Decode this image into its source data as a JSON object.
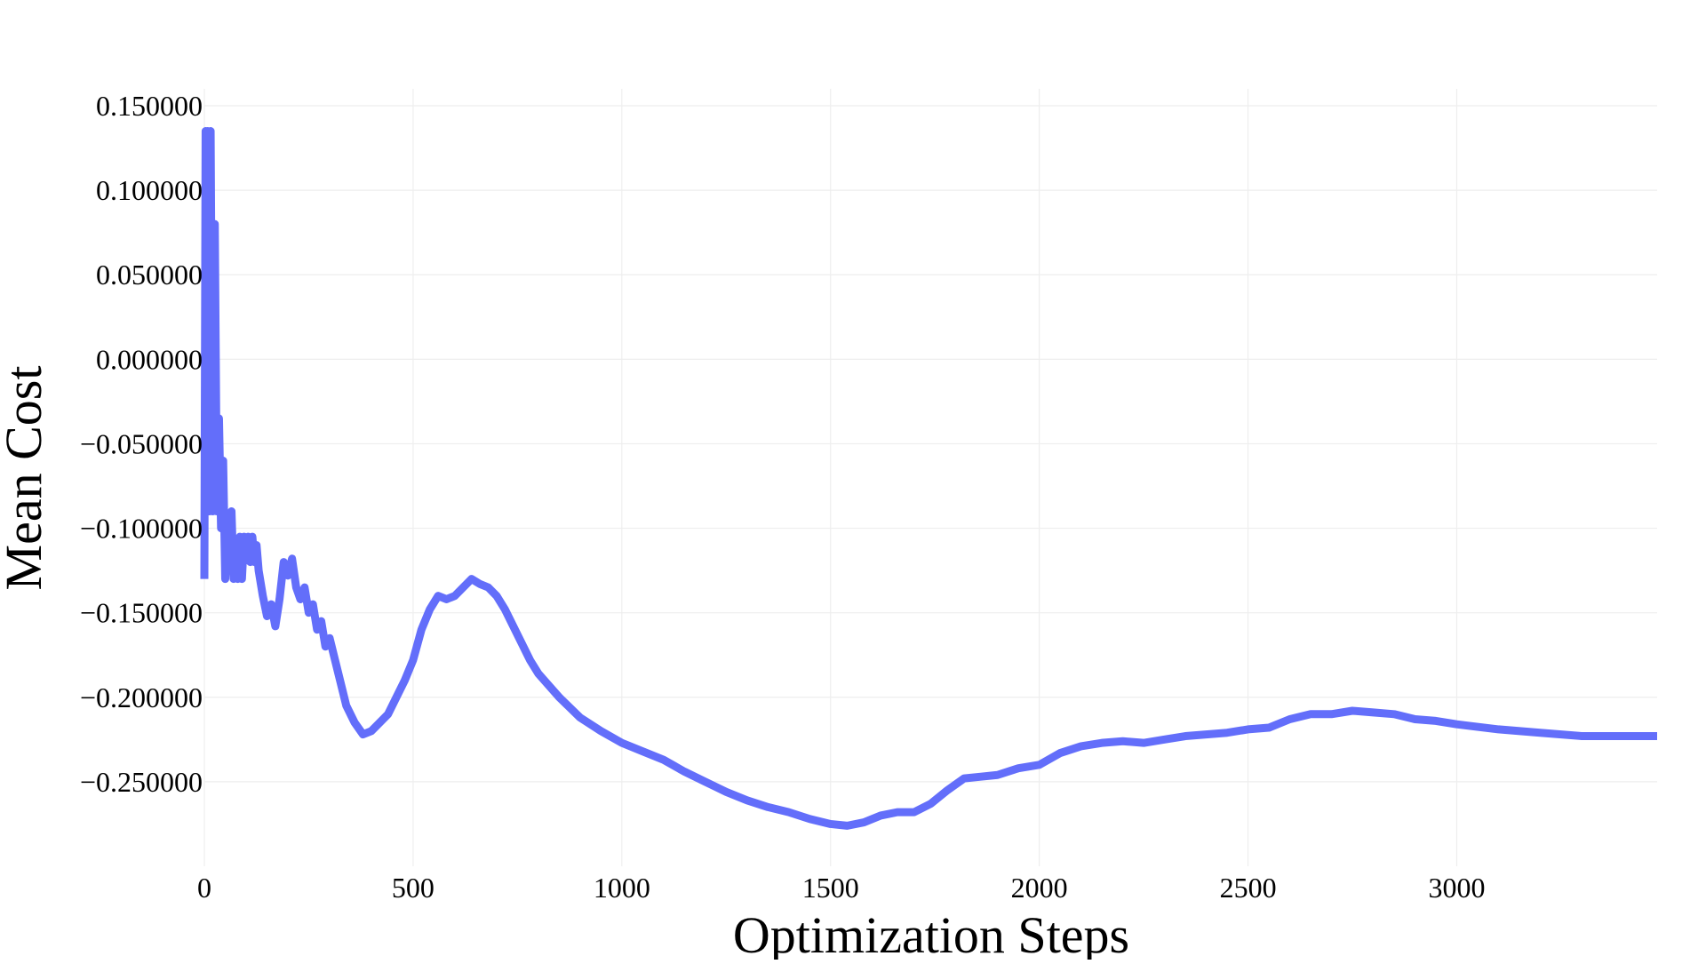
{
  "chart_data": {
    "type": "line",
    "title": "",
    "xlabel": "Optimization Steps",
    "ylabel": "Mean Cost",
    "xlim": [
      0,
      3480
    ],
    "ylim": [
      -0.3,
      0.16
    ],
    "x_ticks": [
      0,
      500,
      1000,
      1500,
      2000,
      2500,
      3000
    ],
    "x_tick_labels": [
      "0",
      "500",
      "1000",
      "1500",
      "2000",
      "2500",
      "3000"
    ],
    "y_ticks": [
      0.15,
      0.1,
      0.05,
      0.0,
      -0.05,
      -0.1,
      -0.15,
      -0.2,
      -0.25
    ],
    "y_tick_labels": [
      "0.150000",
      "0.100000",
      "0.050000",
      "0.000000",
      "−0.050000",
      "−0.100000",
      "−0.150000",
      "−0.200000",
      "−0.250000"
    ],
    "grid": true,
    "legend": "none",
    "line_color": "#636efa",
    "series": [
      {
        "x": [
          0,
          3,
          5,
          8,
          12,
          15,
          20,
          25,
          30,
          35,
          40,
          45,
          50,
          55,
          60,
          65,
          70,
          75,
          80,
          85,
          90,
          95,
          100,
          105,
          110,
          115,
          120,
          125,
          130,
          140,
          150,
          160,
          170,
          180,
          190,
          200,
          210,
          220,
          230,
          240,
          250,
          260,
          270,
          280,
          290,
          300,
          320,
          340,
          360,
          380,
          400,
          420,
          440,
          460,
          480,
          500,
          520,
          540,
          560,
          580,
          600,
          620,
          640,
          660,
          680,
          700,
          720,
          740,
          760,
          780,
          800,
          850,
          900,
          950,
          1000,
          1050,
          1100,
          1150,
          1200,
          1250,
          1300,
          1350,
          1400,
          1450,
          1500,
          1540,
          1580,
          1620,
          1660,
          1700,
          1740,
          1780,
          1820,
          1860,
          1900,
          1950,
          2000,
          2050,
          2100,
          2150,
          2200,
          2250,
          2300,
          2350,
          2400,
          2450,
          2500,
          2550,
          2600,
          2650,
          2700,
          2750,
          2800,
          2850,
          2900,
          2950,
          3000,
          3100,
          3200,
          3300,
          3400,
          3480
        ],
        "y": [
          -0.13,
          0.135,
          -0.09,
          0.135,
          -0.09,
          0.135,
          -0.09,
          0.08,
          -0.09,
          -0.035,
          -0.1,
          -0.06,
          -0.13,
          -0.1,
          -0.12,
          -0.09,
          -0.13,
          -0.11,
          -0.13,
          -0.105,
          -0.13,
          -0.105,
          -0.11,
          -0.105,
          -0.12,
          -0.105,
          -0.12,
          -0.11,
          -0.125,
          -0.14,
          -0.152,
          -0.145,
          -0.158,
          -0.142,
          -0.12,
          -0.128,
          -0.118,
          -0.135,
          -0.142,
          -0.135,
          -0.15,
          -0.145,
          -0.16,
          -0.155,
          -0.17,
          -0.165,
          -0.185,
          -0.205,
          -0.215,
          -0.222,
          -0.22,
          -0.215,
          -0.21,
          -0.2,
          -0.19,
          -0.178,
          -0.16,
          -0.148,
          -0.14,
          -0.142,
          -0.14,
          -0.135,
          -0.13,
          -0.133,
          -0.135,
          -0.14,
          -0.148,
          -0.158,
          -0.168,
          -0.178,
          -0.186,
          -0.2,
          -0.212,
          -0.22,
          -0.227,
          -0.232,
          -0.237,
          -0.244,
          -0.25,
          -0.256,
          -0.261,
          -0.265,
          -0.268,
          -0.272,
          -0.275,
          -0.276,
          -0.274,
          -0.27,
          -0.268,
          -0.268,
          -0.263,
          -0.255,
          -0.248,
          -0.247,
          -0.246,
          -0.242,
          -0.24,
          -0.233,
          -0.229,
          -0.227,
          -0.226,
          -0.227,
          -0.225,
          -0.223,
          -0.222,
          -0.221,
          -0.219,
          -0.218,
          -0.213,
          -0.21,
          -0.21,
          -0.208,
          -0.209,
          -0.21,
          -0.213,
          -0.214,
          -0.216,
          -0.219,
          -0.221,
          -0.223,
          -0.223,
          -0.223
        ]
      }
    ]
  }
}
